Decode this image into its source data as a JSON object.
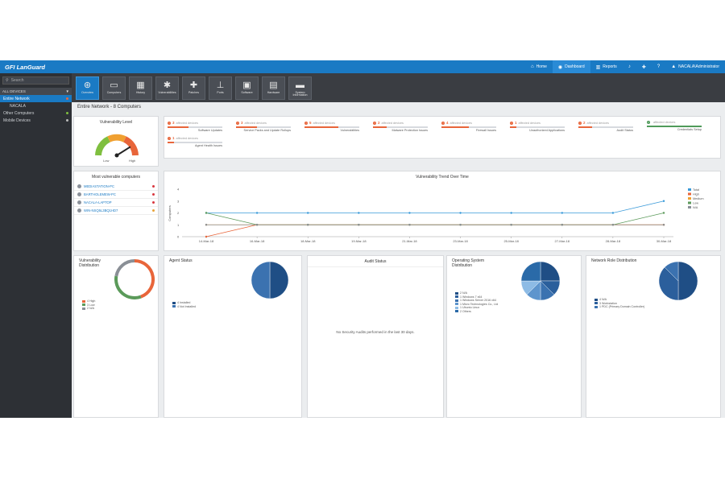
{
  "app": {
    "logo_prefix": "GFI",
    "logo_name": "LanGuard"
  },
  "topnav": [
    {
      "label": "Home",
      "icon": "home-icon",
      "glyph": "⌂",
      "active": false
    },
    {
      "label": "Dashboard",
      "icon": "dashboard-icon",
      "glyph": "◉",
      "active": true
    },
    {
      "label": "Reports",
      "icon": "reports-icon",
      "glyph": "▥",
      "active": false
    },
    {
      "label": "",
      "icon": "bell-icon",
      "glyph": "♪",
      "active": false
    },
    {
      "label": "",
      "icon": "settings-icon",
      "glyph": "✚",
      "active": false
    },
    {
      "label": "",
      "icon": "help-icon",
      "glyph": "?",
      "active": false
    },
    {
      "label": "NACALA\\Administrator",
      "icon": "user-icon",
      "glyph": "▲",
      "active": false
    }
  ],
  "sidebar": {
    "search_placeholder": "Search",
    "header": "ALL DEVICES",
    "tree": [
      {
        "label": "Entire Network",
        "selected": true,
        "indent": false,
        "dot": "#e8653a"
      },
      {
        "label": "NACALA",
        "selected": false,
        "indent": true,
        "dot": ""
      },
      {
        "label": "Other Computers",
        "selected": false,
        "indent": false,
        "dot": "#7fbf3f"
      },
      {
        "label": "Mobile Devices",
        "selected": false,
        "indent": false,
        "dot": "#bbbbbb"
      }
    ]
  },
  "toolbar": [
    {
      "label": "Overview",
      "icon": "overview-icon",
      "glyph": "⊛",
      "active": true
    },
    {
      "label": "Computers",
      "icon": "computer-icon",
      "glyph": "▭",
      "active": false
    },
    {
      "label": "History",
      "icon": "history-icon",
      "glyph": "▦",
      "active": false
    },
    {
      "label": "Vulnerabilities",
      "icon": "bug-icon",
      "glyph": "✱",
      "active": false
    },
    {
      "label": "Patches",
      "icon": "patch-icon",
      "glyph": "✚",
      "active": false
    },
    {
      "label": "Ports",
      "icon": "ports-icon",
      "glyph": "⊥",
      "active": false
    },
    {
      "label": "Software",
      "icon": "software-icon",
      "glyph": "▣",
      "active": false
    },
    {
      "label": "Hardware",
      "icon": "hardware-icon",
      "glyph": "▤",
      "active": false
    },
    {
      "label": "System Information",
      "icon": "system-info-icon",
      "glyph": "▬",
      "active": false
    }
  ],
  "breadcrumb": "Entire Network - 8 Computers",
  "vuln_level": {
    "title": "Vulnerability Level",
    "low": "Low",
    "high": "High",
    "level": 0.82
  },
  "stats": [
    {
      "num": "3",
      "sub": "affected devices",
      "label": "Software Updates",
      "fill": 0.38,
      "color": "#e8653a"
    },
    {
      "num": "3",
      "sub": "affected devices",
      "label": "Service Packs and Update Rollups",
      "fill": 0.38,
      "color": "#e8653a"
    },
    {
      "num": "5",
      "sub": "affected devices",
      "label": "Vulnerabilities",
      "fill": 0.62,
      "color": "#e8653a"
    },
    {
      "num": "2",
      "sub": "affected devices",
      "label": "Malware Protection Issues",
      "fill": 0.25,
      "color": "#e8653a"
    },
    {
      "num": "4",
      "sub": "affected devices",
      "label": "Firewall Issues",
      "fill": 0.5,
      "color": "#e8653a"
    },
    {
      "num": "1",
      "sub": "affected devices",
      "label": "Unauthorized Applications",
      "fill": 0.12,
      "color": "#e8653a"
    },
    {
      "num": "2",
      "sub": "affected devices",
      "label": "Audit Status",
      "fill": 0.25,
      "color": "#e8653a"
    },
    {
      "num": "",
      "sub": "affected devices",
      "label": "Credentials Setup",
      "fill": 1.0,
      "color": "#4f9a5a"
    },
    {
      "num": "1",
      "sub": "affected devices",
      "label": "Agent Health Issues",
      "fill": 0.12,
      "color": "#e8653a"
    }
  ],
  "most_vulnerable": {
    "title": "Most vulnerable computers",
    "items": [
      {
        "name": "MEDIASTATION-PC",
        "dot": "#d9363e"
      },
      {
        "name": "BARTHOLEMEW-PC",
        "dot": "#d9363e"
      },
      {
        "name": "NACALA-LAPTOP",
        "dot": "#d9363e"
      },
      {
        "name": "WIN-NSQ5L3BQ1HD7",
        "dot": "#e8a33a"
      }
    ]
  },
  "trend": {
    "title": "Vulnerability Trend Over Time",
    "ylabel": "Computers"
  },
  "chart_data": {
    "type": "line",
    "title": "Vulnerability Trend Over Time",
    "xlabel": "",
    "ylabel": "Computers",
    "x": [
      "14-Mar-18",
      "16-Mar-18",
      "18-Mar-18",
      "19-Mar-18",
      "21-Mar-18",
      "23-Mar-18",
      "25-Mar-18",
      "27-Mar-18",
      "28-Mar-18",
      "30-Mar-18"
    ],
    "ylim": [
      0,
      4
    ],
    "yticks": [
      0,
      1,
      2,
      3,
      4
    ],
    "series": [
      {
        "name": "Total",
        "color": "#3a9ad9",
        "values": [
          2,
          2,
          2,
          2,
          2,
          2,
          2,
          2,
          2,
          3
        ]
      },
      {
        "name": "High",
        "color": "#e8653a",
        "values": [
          0,
          1,
          1,
          1,
          1,
          1,
          1,
          1,
          1,
          1
        ]
      },
      {
        "name": "Medium",
        "color": "#f0a030",
        "values": [
          1,
          1,
          1,
          1,
          1,
          1,
          1,
          1,
          1,
          1
        ]
      },
      {
        "name": "Low",
        "color": "#5b9a5a",
        "values": [
          2,
          1,
          1,
          1,
          1,
          1,
          1,
          1,
          1,
          2
        ]
      },
      {
        "name": "N/A",
        "color": "#8a8f96",
        "values": [
          1,
          1,
          1,
          1,
          1,
          1,
          1,
          1,
          1,
          1
        ]
      }
    ],
    "legend": "right",
    "grid": false
  },
  "vuln_dist": {
    "title": "Vulnerability Distribution",
    "legend": [
      {
        "label": "4 High",
        "color": "#e8653a",
        "value": 4
      },
      {
        "label": "3 Low",
        "color": "#5b9a5a",
        "value": 3
      },
      {
        "label": "2 N/A",
        "color": "#8a8f96",
        "value": 2
      }
    ]
  },
  "agent_status": {
    "title": "Agent Status",
    "legend": [
      {
        "label": "4 Installed",
        "color": "#1f4e85",
        "value": 4
      },
      {
        "label": "4 Not Installed",
        "color": "#3b72b0",
        "value": 4
      }
    ]
  },
  "audit_status": {
    "title": "Audit Status",
    "message": "No Security Audits performed in the last 30 days."
  },
  "os_dist": {
    "title": "Operating System Distribution",
    "legend": [
      {
        "label": "2 N/A",
        "color": "#1f4e85",
        "value": 2
      },
      {
        "label": "1 Windows 7 x64",
        "color": "#2b5f9c",
        "value": 1
      },
      {
        "label": "1 Windows Server 2016 x64",
        "color": "#3b72b0",
        "value": 1
      },
      {
        "label": "1 Micro Technologies Co., Ltd",
        "color": "#5e95cd",
        "value": 1
      },
      {
        "label": "1 Ubuntu Linux",
        "color": "#8dbbe5",
        "value": 1
      },
      {
        "label": "2 Others",
        "color": "#2a6aa8",
        "value": 2
      }
    ]
  },
  "net_role": {
    "title": "Network Role Distribution",
    "legend": [
      {
        "label": "4 N/A",
        "color": "#1f4e85",
        "value": 4
      },
      {
        "label": "3 Workstation",
        "color": "#2b5f9c",
        "value": 3
      },
      {
        "label": "1 PDC (Primary Domain Controller)",
        "color": "#3b72b0",
        "value": 1
      }
    ]
  }
}
